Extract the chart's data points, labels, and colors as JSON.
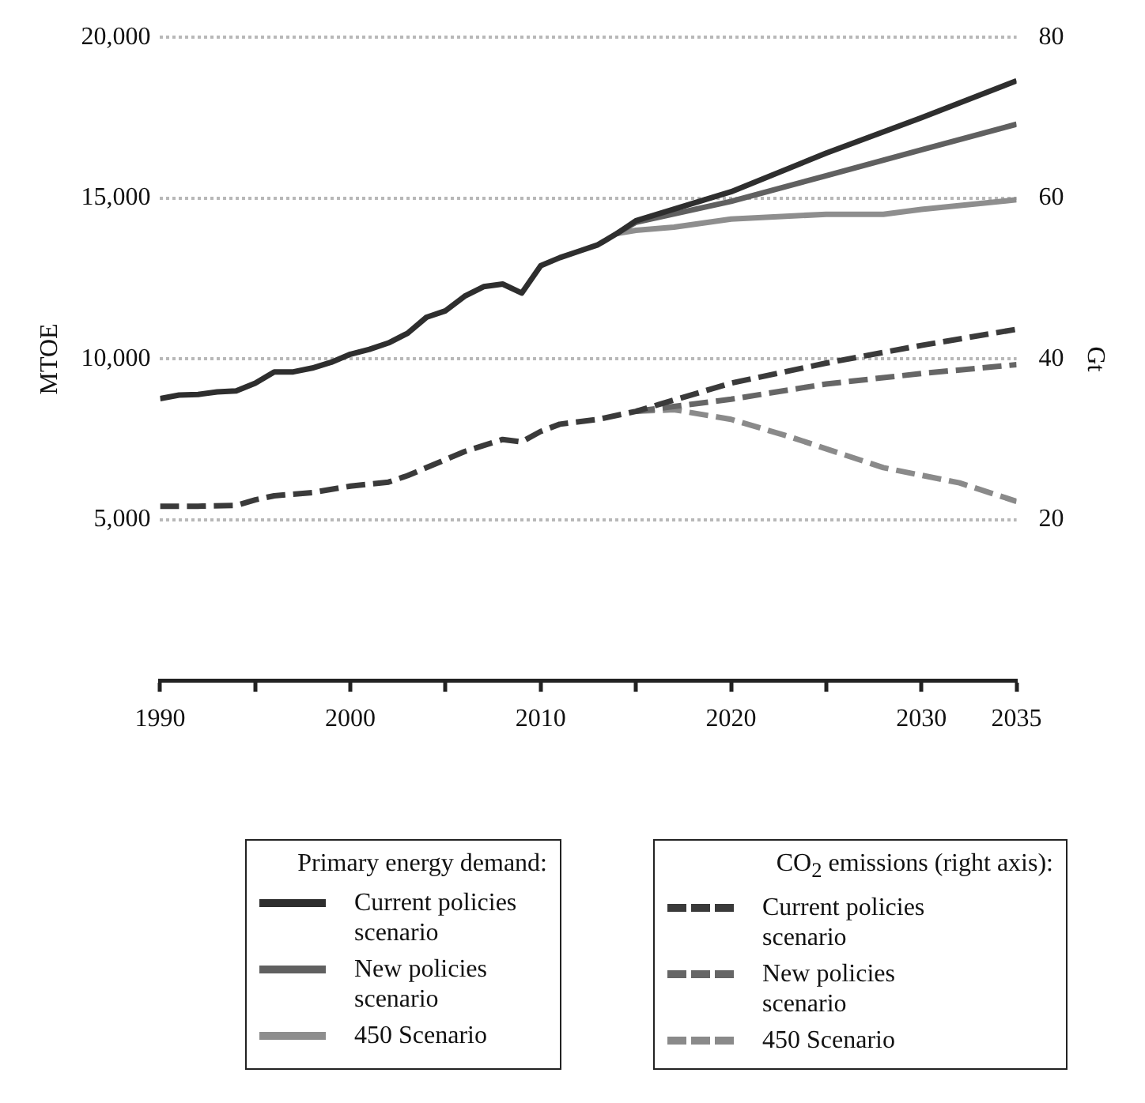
{
  "chart_data": {
    "type": "line",
    "xlim": [
      1990,
      2035
    ],
    "xticks": [
      1990,
      {
        "value": 1995,
        "label": null
      },
      2000,
      {
        "value": 2005,
        "label": null
      },
      2010,
      {
        "value": 2015,
        "label": null
      },
      2020,
      {
        "value": 2025,
        "label": null
      },
      2030,
      2035
    ],
    "ylabel": "MTOE",
    "y2label": "Gt",
    "ylim": [
      0,
      20000
    ],
    "yticks": [
      {
        "value": 5000,
        "label": "5,000"
      },
      {
        "value": 10000,
        "label": "10,000"
      },
      {
        "value": 15000,
        "label": "15,000"
      },
      {
        "value": 20000,
        "label": "20,000"
      }
    ],
    "y2lim": [
      0,
      80
    ],
    "y2ticks": [
      20,
      40,
      60,
      80
    ],
    "grid": "y",
    "legend": "bottom",
    "marker": "none",
    "legend_title": "Primary energy demand:",
    "annotations": [
      "CO$_{2}$ emissions (right axis):"
    ],
    "series": [
      {
        "name": "Current policies scenario",
        "color": "#2e2e2e",
        "line_style": "solid",
        "x": [
          1990,
          1991,
          1992,
          1993,
          1994,
          1995,
          1996,
          1997,
          1998,
          1999,
          2000,
          2001,
          2002,
          2003,
          2004,
          2005,
          2006,
          2007,
          2008,
          2009,
          2010,
          2011,
          2012,
          2013,
          2014,
          2015,
          2020,
          2025,
          2030,
          2035
        ],
        "values": [
          8770,
          8880,
          8900,
          8980,
          9010,
          9250,
          9600,
          9600,
          9720,
          9900,
          10150,
          10300,
          10500,
          10800,
          11300,
          11500,
          11950,
          12250,
          12330,
          12050,
          12900,
          13150,
          13350,
          13550,
          13900,
          14300,
          15200,
          16400,
          17500,
          18650
        ]
      },
      {
        "name": "New policies scenario",
        "color": "#606060",
        "line_style": "solid",
        "x": [
          2014,
          2015,
          2020,
          2025,
          2030,
          2035
        ],
        "values": [
          13900,
          14250,
          14900,
          15700,
          16500,
          17300
        ]
      },
      {
        "name": "450 Scenario",
        "color": "#8e8e8e",
        "line_style": "solid",
        "x": [
          2014,
          2015,
          2017,
          2020,
          2025,
          2028,
          2030,
          2035
        ],
        "values": [
          13900,
          14000,
          14100,
          14350,
          14500,
          14500,
          14650,
          14950
        ]
      },
      {
        "name": "Current policies scenario",
        "color": "#3a3a3a",
        "line_style": "dashed",
        "axis": "y2",
        "x": [
          1990,
          1992,
          1994,
          1995,
          1996,
          1998,
          2000,
          2002,
          2003,
          2004,
          2006,
          2008,
          2009,
          2010,
          2011,
          2013,
          2015,
          2020,
          2025,
          2030,
          2035
        ],
        "values": [
          21.7,
          21.7,
          21.8,
          22.5,
          23.0,
          23.4,
          24.2,
          24.7,
          25.5,
          26.5,
          28.5,
          30.0,
          29.7,
          31.0,
          31.9,
          32.5,
          33.5,
          37.0,
          39.5,
          41.7,
          43.7
        ]
      },
      {
        "name": "New policies scenario",
        "color": "#666666",
        "line_style": "dashed",
        "axis": "y2",
        "x": [
          2015,
          2020,
          2025,
          2030,
          2035
        ],
        "values": [
          33.5,
          35.0,
          36.9,
          38.2,
          39.3
        ]
      },
      {
        "name": "450 Scenario",
        "color": "#8a8a8a",
        "line_style": "dashed",
        "axis": "y2",
        "x": [
          2015,
          2017,
          2020,
          2023,
          2028,
          2032,
          2035
        ],
        "values": [
          33.5,
          33.7,
          32.5,
          30.4,
          26.5,
          24.6,
          22.3
        ]
      }
    ]
  }
}
